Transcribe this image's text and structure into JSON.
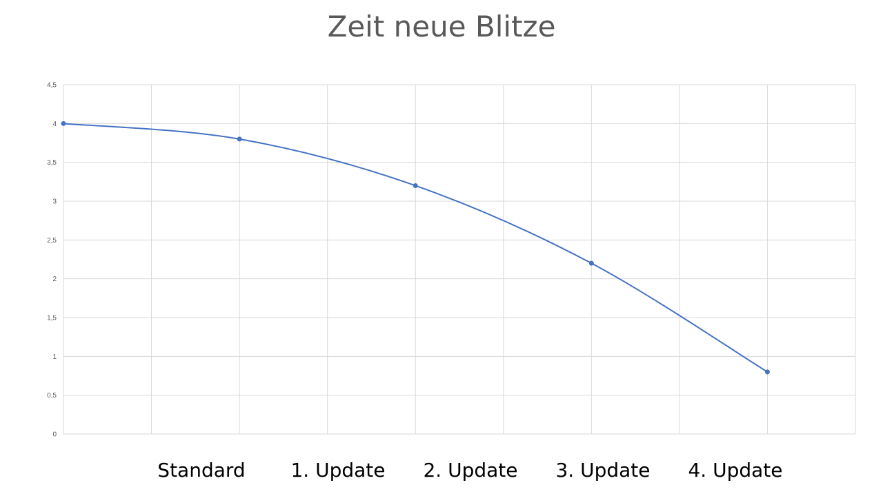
{
  "chart_data": {
    "type": "line",
    "title": "Zeit neue Blitze",
    "xlabel": "",
    "ylabel": "",
    "categories": [
      "Standard",
      "1. Update",
      "2. Update",
      "3. Update",
      "4. Update"
    ],
    "y_tick_labels": [
      "0",
      "0,5",
      "1",
      "1,5",
      "2",
      "2,5",
      "3",
      "3,5",
      "4",
      "4,5"
    ],
    "ylim": [
      0,
      4.5
    ],
    "grid": true,
    "smooth": true,
    "series": [
      {
        "values": [
          4.0,
          3.8,
          3.2,
          2.2,
          0.8
        ]
      }
    ]
  },
  "colors": {
    "line": "#4472C4",
    "grid": "#D9D9D9",
    "title": "#595959"
  }
}
